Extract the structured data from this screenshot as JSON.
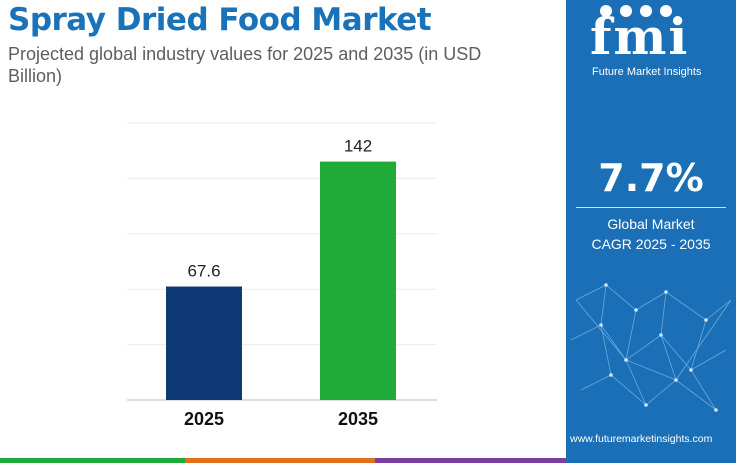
{
  "header": {
    "title": "Spray Dried Food Market",
    "subtitle": "Projected global industry values for 2025 and 2035 (in USD Billion)"
  },
  "brand": {
    "logo_text": "fmi",
    "company_name": "Future Market Insights",
    "website": "www.futuremarketinsights.com"
  },
  "stats": {
    "cagr_value": "7.7%",
    "cagr_label_line1": "Global Market",
    "cagr_label_line2": "CAGR 2025 - 2035"
  },
  "colors": {
    "title": "#1a72b8",
    "panel": "#1a6fb6",
    "bar_2025": "#0d3a75",
    "bar_2035": "#1faa3a",
    "footer_segments": [
      "#1faa3a",
      "#e0701e",
      "#7b3f9e",
      "#1a6fb6"
    ]
  },
  "chart_data": {
    "type": "bar",
    "categories": [
      "2025",
      "2035"
    ],
    "values": [
      67.6,
      142
    ],
    "data_labels": [
      "67.6",
      "142"
    ],
    "bar_colors": [
      "#0d3a75",
      "#1faa3a"
    ],
    "ylim": [
      0,
      165
    ],
    "grid": true,
    "gridline_values": [
      0,
      33,
      66,
      99,
      132,
      165
    ]
  }
}
